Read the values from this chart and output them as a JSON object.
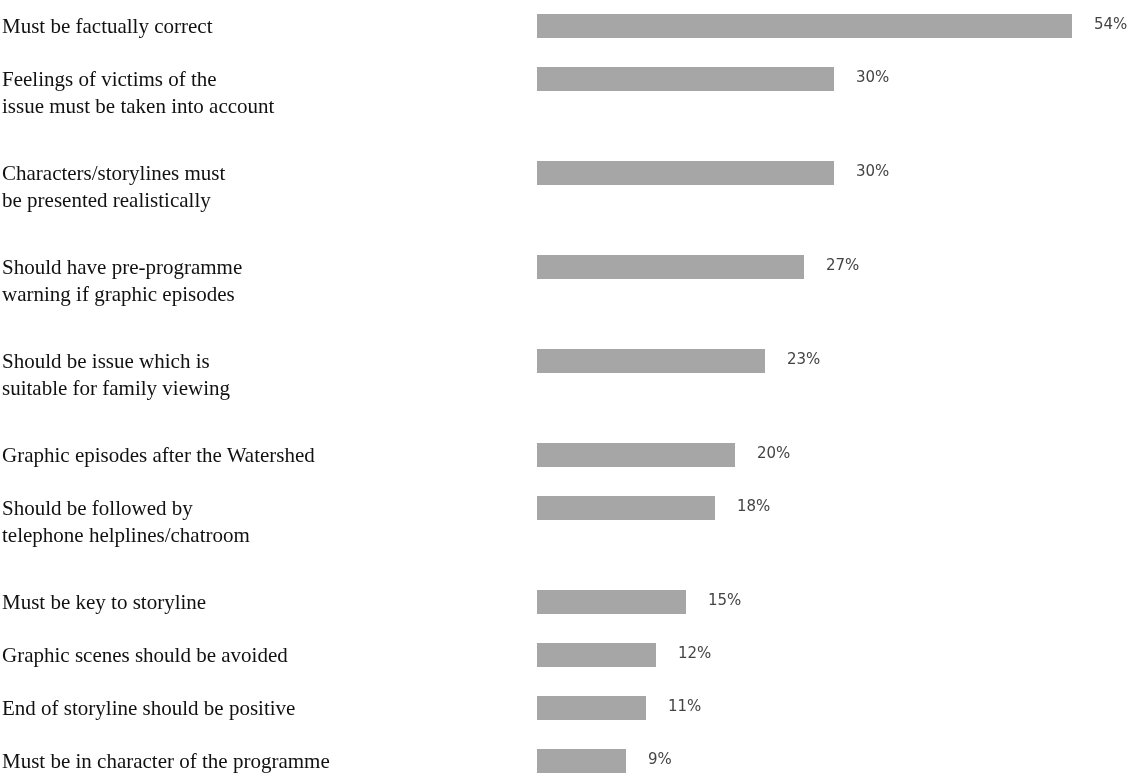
{
  "chart_data": {
    "type": "bar",
    "orientation": "horizontal",
    "categories": [
      "Must be factually correct",
      "Feelings of victims of the\nissue must be taken into account",
      "Characters/storylines must\nbe presented realistically",
      "Should have pre-programme\nwarning if graphic episodes",
      "Should be issue which is\nsuitable for family viewing",
      "Graphic episodes after the Watershed",
      "Should be followed by\ntelephone helplines/chatroom",
      "Must be key to storyline",
      "Graphic scenes should be avoided",
      "End of storyline should be positive",
      "Must be in character of the programme"
    ],
    "values": [
      54,
      30,
      30,
      27,
      23,
      20,
      18,
      15,
      12,
      11,
      9
    ],
    "value_labels": [
      "54%",
      "30%",
      "30%",
      "27%",
      "23%",
      "20%",
      "18%",
      "15%",
      "12%",
      "11%",
      "9%"
    ],
    "color": "#a6a6a6"
  }
}
